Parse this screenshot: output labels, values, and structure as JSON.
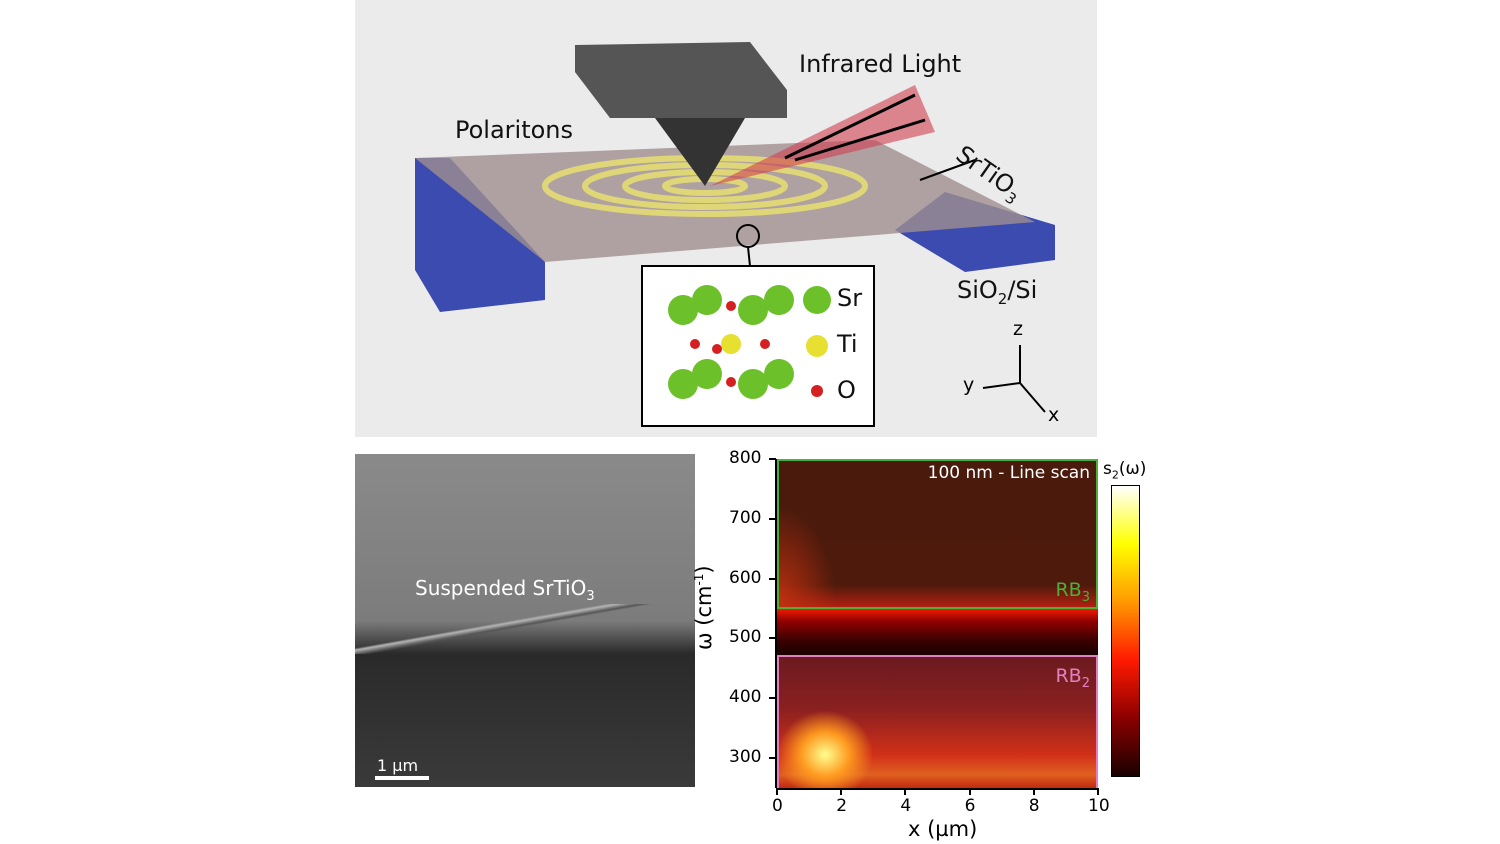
{
  "schematic": {
    "labels": {
      "infrared": "Infrared Light",
      "polaritons": "Polaritons",
      "srtio3": "SrTiO",
      "srtio3_sub": "3",
      "substrate": "SiO",
      "substrate_sub": "2",
      "substrate_rest": "/Si"
    },
    "legend": [
      {
        "symbol": "Sr",
        "color": "#6cc12a"
      },
      {
        "symbol": "Ti",
        "color": "#e8e030"
      },
      {
        "symbol": "O",
        "color": "#d42020"
      }
    ],
    "axes": {
      "z": "z",
      "y": "y",
      "x": "x"
    }
  },
  "sem": {
    "label": "Suspended SrTiO",
    "label_sub": "3",
    "scale_bar": "1 µm"
  },
  "chart_data": {
    "type": "heatmap",
    "title": "100 nm - Line scan",
    "xlabel": "x (µm)",
    "ylabel": "ω (cm",
    "ylabel_sup": "-1",
    "ylabel_end": ")",
    "xlim": [
      0,
      10
    ],
    "ylim": [
      250,
      800
    ],
    "xticks": [
      0,
      2,
      4,
      6,
      8,
      10
    ],
    "yticks": [
      300,
      400,
      500,
      600,
      700,
      800
    ],
    "colorbar_label": "s",
    "colorbar_sub": "2",
    "colorbar_end": "(ω)",
    "colormap": [
      "#1a0000",
      "#8b0000",
      "#ff1a00",
      "#ff9900",
      "#ffff00",
      "#ffffff"
    ],
    "regions": [
      {
        "name": "RB",
        "sub": "3",
        "range": [
          550,
          800
        ],
        "color": "#4caf3a"
      },
      {
        "name": "RB",
        "sub": "2",
        "range": [
          250,
          472
        ],
        "color": "#e080c0"
      }
    ]
  }
}
